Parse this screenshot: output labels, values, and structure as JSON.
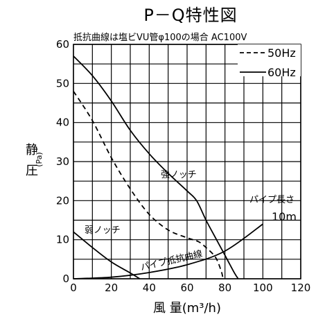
{
  "chart_data": {
    "type": "line",
    "title": "P－Q特性図",
    "subtitle": "抵抗曲線は塩ビVU管φ100の場合 AC100V",
    "xlabel": "風 量(m³/h)",
    "ylabel": "静圧",
    "ylabel_unit": "(Pa)",
    "xlim": [
      0,
      120
    ],
    "ylim": [
      0,
      60
    ],
    "x_ticks": [
      0,
      20,
      40,
      60,
      80,
      100,
      120
    ],
    "y_ticks": [
      0,
      10,
      20,
      30,
      40,
      50,
      60
    ],
    "x_tick_labels": [
      "0",
      "20",
      "40",
      "60",
      "80",
      "100",
      "120"
    ],
    "y_tick_labels": [
      "0",
      "10",
      "20",
      "30",
      "40",
      "50",
      "60"
    ],
    "grid": true,
    "legend_position": "top-right",
    "legend": [
      {
        "label": "50Hz",
        "style": "dashed"
      },
      {
        "label": "60Hz",
        "style": "solid"
      }
    ],
    "series": [
      {
        "label": "強ノッチ",
        "hz": "60Hz",
        "style": "solid",
        "points": [
          [
            0,
            57
          ],
          [
            10,
            52
          ],
          [
            20,
            45.5
          ],
          [
            30,
            38
          ],
          [
            40,
            32
          ],
          [
            50,
            27
          ],
          [
            60,
            22.5
          ],
          [
            65,
            20
          ],
          [
            70,
            15
          ],
          [
            75,
            10.5
          ],
          [
            80,
            6
          ],
          [
            85,
            1.5
          ],
          [
            87,
            0
          ]
        ]
      },
      {
        "label": "強ノッチ",
        "hz": "50Hz",
        "style": "dashed",
        "points": [
          [
            0,
            48
          ],
          [
            10,
            40.5
          ],
          [
            20,
            31
          ],
          [
            30,
            23
          ],
          [
            40,
            16.5
          ],
          [
            50,
            12.5
          ],
          [
            60,
            10.5
          ],
          [
            66,
            9.5
          ],
          [
            70,
            8
          ],
          [
            75,
            5.5
          ],
          [
            78,
            2
          ],
          [
            79,
            0
          ]
        ]
      },
      {
        "label": "弱ノッチ",
        "hz": "60Hz",
        "style": "solid",
        "points": [
          [
            0,
            12
          ],
          [
            10,
            8
          ],
          [
            20,
            4.3
          ],
          [
            30,
            1.5
          ],
          [
            35,
            0
          ]
        ]
      },
      {
        "label": "パイプ抵抗曲線",
        "style": "solid",
        "points": [
          [
            0,
            0
          ],
          [
            20,
            0.4
          ],
          [
            40,
            1.6
          ],
          [
            60,
            3.6
          ],
          [
            80,
            7.1
          ],
          [
            100,
            14
          ]
        ]
      }
    ],
    "annotations": [
      {
        "text": "強ノッチ"
      },
      {
        "text": "弱ノッチ"
      },
      {
        "text": "パイプ抵抗曲線"
      },
      {
        "text": "パイプ長さ"
      },
      {
        "text": "10m"
      }
    ]
  }
}
